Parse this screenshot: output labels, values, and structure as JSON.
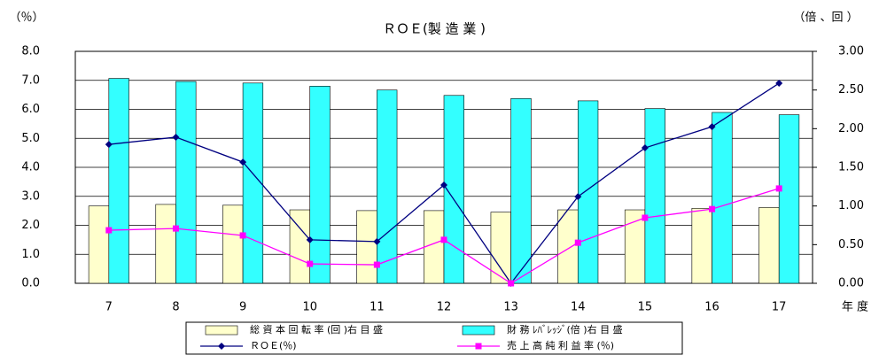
{
  "chart_data": {
    "type": "bar_line",
    "title": "ＲＯＥ(製 造 業 )",
    "y_label": "（％）",
    "y2_label": "（倍 、回 ）",
    "x_label": "年 度",
    "categories": [
      "7",
      "8",
      "9",
      "10",
      "11",
      "12",
      "13",
      "14",
      "15",
      "16",
      "17"
    ],
    "series": [
      {
        "name": "総 資 本 回 転 率 (回 )右 目 盛",
        "color": "#ffffcc",
        "type": "bar",
        "axis": "y2",
        "values": [
          1.0,
          1.02,
          1.01,
          0.95,
          0.94,
          0.94,
          0.92,
          0.95,
          0.95,
          0.97,
          0.98
        ]
      },
      {
        "name": "財 務 ﾚﾊﾞﾚｯｼﾞ(倍 )右 目 盛",
        "color": "#33ffff",
        "type": "bar",
        "axis": "y2",
        "values": [
          2.65,
          2.61,
          2.59,
          2.55,
          2.5,
          2.43,
          2.39,
          2.36,
          2.26,
          2.21,
          2.18
        ]
      },
      {
        "name": "ＲＯＥ(％)",
        "color": "#000080",
        "type": "line",
        "marker": "diamond",
        "values": [
          4.79,
          5.04,
          4.18,
          1.5,
          1.44,
          3.39,
          0,
          2.99,
          4.67,
          5.4,
          6.9
        ]
      },
      {
        "name": "売 上 高 純 利 益 率 (％)",
        "color": "#ff00ff",
        "type": "line",
        "marker": "square",
        "values": [
          1.83,
          1.89,
          1.65,
          0.67,
          0.64,
          1.5,
          0,
          1.4,
          2.26,
          2.56,
          3.27
        ]
      }
    ],
    "ylim": [
      0,
      8
    ],
    "yticks": [
      {
        "value": 0,
        "label": "0.0"
      },
      {
        "value": 1,
        "label": "1.0"
      },
      {
        "value": 2,
        "label": "2.0"
      },
      {
        "value": 3,
        "label": "3.0"
      },
      {
        "value": 4,
        "label": "4.0"
      },
      {
        "value": 5,
        "label": "5.0"
      },
      {
        "value": 6,
        "label": "6.0"
      },
      {
        "value": 7,
        "label": "7.0"
      },
      {
        "value": 8,
        "label": "8.0"
      }
    ],
    "y2lim": [
      0,
      3
    ],
    "y2ticks": [
      {
        "value": 0,
        "label": "0.00"
      },
      {
        "value": 0.5,
        "label": "0.50"
      },
      {
        "value": 1,
        "label": "1.00"
      },
      {
        "value": 1.5,
        "label": "1.50"
      },
      {
        "value": 2,
        "label": "2.00"
      },
      {
        "value": 2.5,
        "label": "2.50"
      },
      {
        "value": 3,
        "label": "3.00"
      }
    ],
    "grid": true
  }
}
